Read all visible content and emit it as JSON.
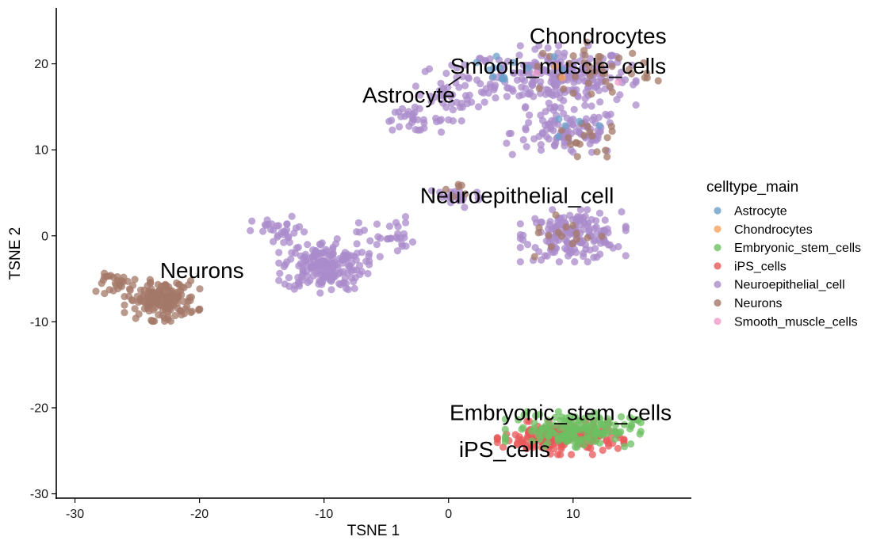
{
  "chart_data": {
    "type": "scatter",
    "xlabel": "TSNE 1",
    "ylabel": "TSNE 2",
    "xlim": [
      -31.5,
      19.5
    ],
    "ylim": [
      -30.5,
      26.5
    ],
    "x_ticks": [
      -30,
      -20,
      -10,
      0,
      10
    ],
    "y_ticks": [
      -30,
      -20,
      -10,
      0,
      10,
      20
    ],
    "grid": false,
    "legend": {
      "title": "celltype_main",
      "placement": "right",
      "entries": [
        {
          "name": "Astrocyte",
          "color": "#6A9FCB"
        },
        {
          "name": "Chondrocytes",
          "color": "#F5A35C"
        },
        {
          "name": "Embryonic_stem_cells",
          "color": "#6CC061"
        },
        {
          "name": "iPS_cells",
          "color": "#E8585A"
        },
        {
          "name": "Neuroepithelial_cell",
          "color": "#A98BCB"
        },
        {
          "name": "Neurons",
          "color": "#A47868"
        },
        {
          "name": "Smooth_muscle_cells",
          "color": "#EC9BC8"
        }
      ]
    },
    "cluster_labels": [
      {
        "text": "Chondrocytes",
        "x": 12.0,
        "y": 23.3
      },
      {
        "text": "Smooth_muscle_cells",
        "x": 8.8,
        "y": 19.8
      },
      {
        "text": "Astrocyte",
        "x": -3.2,
        "y": 16.4
      },
      {
        "text": "Neuroepithelial_cell",
        "x": 5.5,
        "y": 4.7
      },
      {
        "text": "Neurons",
        "x": -19.8,
        "y": -4.0
      },
      {
        "text": "Embryonic_stem_cells",
        "x": 9.0,
        "y": -20.5
      },
      {
        "text": "iPS_cells",
        "x": 4.5,
        "y": -24.8
      }
    ],
    "cluster_label_leaders": [
      {
        "from": [
          1.0,
          18.5
        ],
        "to": [
          0.0,
          17.5
        ]
      }
    ],
    "series": [
      {
        "name": "Neuroepithelial_cell",
        "clusters": [
          {
            "cx": 9.0,
            "cy": 18.5,
            "sx": 5.0,
            "sy": 3.0,
            "n": 230
          },
          {
            "cx": 1.0,
            "cy": 17.0,
            "sx": 3.0,
            "sy": 3.0,
            "n": 60
          },
          {
            "cx": -3.0,
            "cy": 13.5,
            "sx": 2.0,
            "sy": 1.2,
            "n": 30
          },
          {
            "cx": 9.5,
            "cy": 12.0,
            "sx": 4.0,
            "sy": 2.5,
            "n": 110
          },
          {
            "cx": 10.0,
            "cy": 0.0,
            "sx": 3.5,
            "sy": 2.5,
            "n": 170
          },
          {
            "cx": 0.5,
            "cy": 4.5,
            "sx": 2.0,
            "sy": 1.2,
            "n": 25
          },
          {
            "cx": -10.0,
            "cy": -3.5,
            "sx": 3.0,
            "sy": 2.6,
            "n": 190
          },
          {
            "cx": -5.0,
            "cy": 0.0,
            "sx": 2.0,
            "sy": 2.0,
            "n": 30
          },
          {
            "cx": -13.5,
            "cy": 0.5,
            "sx": 2.0,
            "sy": 1.5,
            "n": 30
          }
        ]
      },
      {
        "name": "Neurons",
        "clusters": [
          {
            "cx": -23.0,
            "cy": -7.5,
            "sx": 2.5,
            "sy": 2.0,
            "n": 170
          },
          {
            "cx": -26.5,
            "cy": -5.5,
            "sx": 1.5,
            "sy": 1.0,
            "n": 25
          },
          {
            "cx": 12.0,
            "cy": 19.5,
            "sx": 4.0,
            "sy": 2.5,
            "n": 40
          },
          {
            "cx": 11.5,
            "cy": 11.0,
            "sx": 2.5,
            "sy": 2.0,
            "n": 18
          },
          {
            "cx": 9.0,
            "cy": 0.0,
            "sx": 3.0,
            "sy": 2.0,
            "n": 15
          },
          {
            "cx": 1.0,
            "cy": 5.5,
            "sx": 1.0,
            "sy": 0.8,
            "n": 6
          }
        ]
      },
      {
        "name": "Astrocyte",
        "clusters": [
          {
            "cx": 5.0,
            "cy": 19.0,
            "sx": 4.0,
            "sy": 2.5,
            "n": 14
          },
          {
            "cx": 8.5,
            "cy": 13.0,
            "sx": 3.0,
            "sy": 1.2,
            "n": 5
          }
        ]
      },
      {
        "name": "iPS_cells",
        "clusters": [
          {
            "cx": 9.0,
            "cy": -23.5,
            "sx": 4.2,
            "sy": 1.6,
            "n": 200
          }
        ]
      },
      {
        "name": "Embryonic_stem_cells",
        "clusters": [
          {
            "cx": 10.0,
            "cy": -22.5,
            "sx": 4.5,
            "sy": 1.7,
            "n": 150
          }
        ]
      },
      {
        "name": "Chondrocytes",
        "clusters": [
          {
            "cx": 9.0,
            "cy": 19.0,
            "sx": 3.0,
            "sy": 2.0,
            "n": 2
          }
        ]
      },
      {
        "name": "Smooth_muscle_cells",
        "clusters": [
          {
            "cx": 10.0,
            "cy": 19.0,
            "sx": 3.0,
            "sy": 2.0,
            "n": 2
          }
        ]
      }
    ]
  }
}
